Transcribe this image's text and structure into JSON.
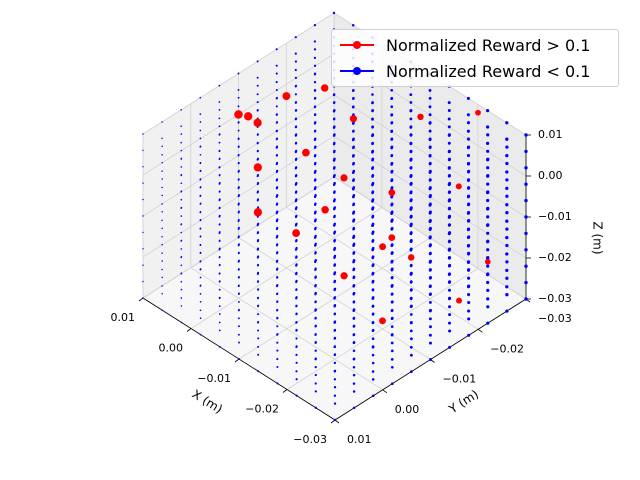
{
  "chart_data": {
    "type": "scatter",
    "projection": "3d",
    "title": "",
    "xlabel": "X (m)",
    "ylabel": "Y (m)",
    "zlabel": "Z (m)",
    "xlim": [
      -0.03,
      0.01
    ],
    "ylim": [
      -0.03,
      0.01
    ],
    "zlim": [
      -0.03,
      0.01
    ],
    "xticks": [
      "0.01",
      "0.00",
      "−0.01",
      "−0.02",
      "−0.03"
    ],
    "yticks": [
      "0.01",
      "0.00",
      "−0.01",
      "−0.02",
      "−0.03"
    ],
    "zticks": [
      "0.01",
      "0.00",
      "−0.01",
      "−0.02",
      "−0.03"
    ],
    "grid": true,
    "legend_position": "top-right",
    "series": [
      {
        "name": "Normalized Reward > 0.1",
        "color": "#ff0000",
        "points": [
          [
            0.01,
            -0.01,
            0.0
          ],
          [
            0.008,
            -0.012,
            -0.002
          ],
          [
            0.006,
            -0.008,
            0.004
          ],
          [
            0.004,
            -0.014,
            0.006
          ],
          [
            0.002,
            -0.006,
            -0.004
          ],
          [
            0.0,
            -0.018,
            0.008
          ],
          [
            0.0,
            -0.004,
            -0.012
          ],
          [
            -0.002,
            -0.01,
            -0.02
          ],
          [
            -0.004,
            -0.02,
            0.002
          ],
          [
            -0.006,
            -0.016,
            -0.008
          ],
          [
            -0.008,
            -0.024,
            -0.016
          ],
          [
            -0.01,
            -0.004,
            0.01
          ],
          [
            -0.01,
            -0.022,
            -0.024
          ],
          [
            -0.012,
            -0.026,
            0.004
          ],
          [
            -0.014,
            -0.008,
            -0.02
          ],
          [
            -0.016,
            -0.002,
            0.002
          ],
          [
            -0.018,
            -0.028,
            -0.01
          ],
          [
            -0.02,
            -0.01,
            -0.028
          ],
          [
            -0.02,
            -0.03,
            0.008
          ],
          [
            -0.022,
            -0.014,
            -0.014
          ],
          [
            -0.024,
            -0.006,
            -0.004
          ],
          [
            -0.026,
            -0.02,
            -0.026
          ],
          [
            -0.028,
            -0.024,
            -0.018
          ]
        ]
      },
      {
        "name": "Normalized Reward < 0.1",
        "color": "#0000ff",
        "grid_x": [
          0.01,
          0.006,
          0.002,
          -0.002,
          -0.006,
          -0.01,
          -0.014,
          -0.018,
          -0.022,
          -0.026,
          -0.03
        ],
        "grid_y": [
          0.01,
          0.006,
          0.002,
          -0.002,
          -0.006,
          -0.01,
          -0.014,
          -0.018,
          -0.022,
          -0.026,
          -0.03
        ],
        "grid_z": [
          0.01,
          0.006,
          0.002,
          -0.002,
          -0.006,
          -0.01,
          -0.014,
          -0.018,
          -0.022,
          -0.026,
          -0.03
        ]
      }
    ]
  }
}
